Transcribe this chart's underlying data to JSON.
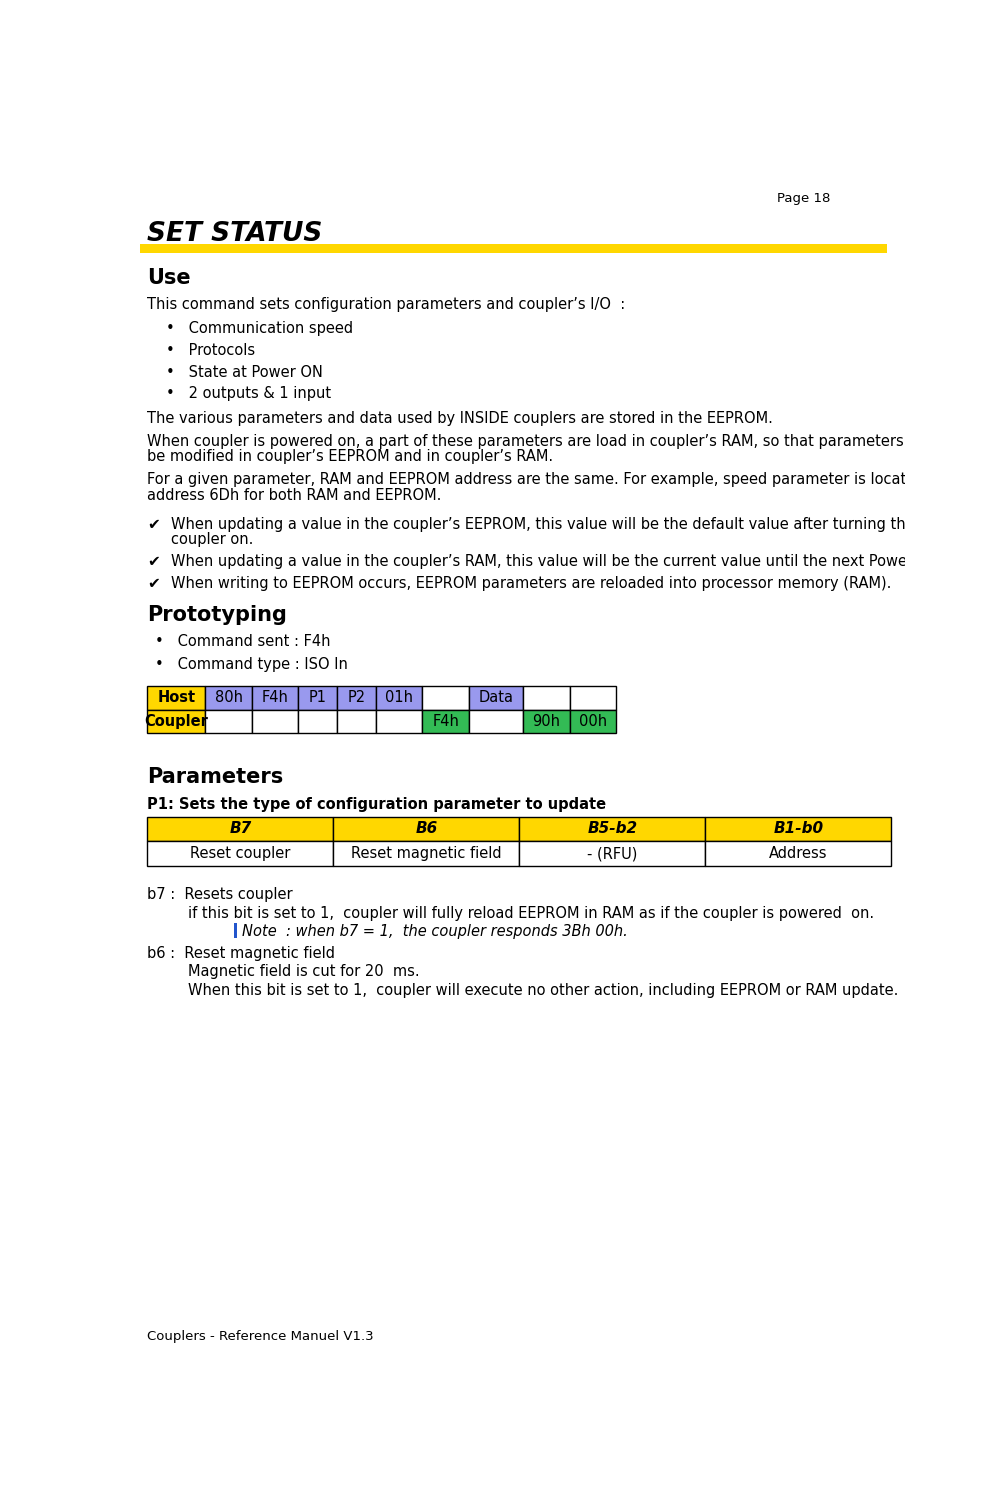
{
  "page_number": "Page 18",
  "title": "SET STATUS",
  "title_bar_color": "#FFD700",
  "section_use": "Use",
  "use_intro": "This command sets configuration parameters and coupler’s I/O  :",
  "use_bullets": [
    "Communication speed",
    "Protocols",
    "State at Power ON",
    "2 outputs & 1 input"
  ],
  "use_para1": "The various parameters and data used by INSIDE couplers are stored in the EEPROM.",
  "use_para2a": "When coupler is powered on, a part of these parameters are load in coupler’s RAM, so that parameters may",
  "use_para2b": "be modified in coupler’s EEPROM and in coupler’s RAM.",
  "use_para3a": "For a given parameter, RAM and EEPROM address are the same. For example, speed parameter is located at",
  "use_para3b": "address 6Dh for both RAM and EEPROM.",
  "checkmarks": [
    [
      "When updating a value in the coupler’s EEPROM, this value will be the default value after turning the",
      "coupler on."
    ],
    [
      "When updating a value in the coupler’s RAM, this value will be the current value until the next Power  Off."
    ],
    [
      "When writing to EEPROM occurs, EEPROM parameters are reloaded into processor memory (RAM)."
    ]
  ],
  "section_proto": "Prototyping",
  "proto_bullets": [
    "Command sent : F4h",
    "Command type : ISO In"
  ],
  "host_row": [
    "Host",
    "80h",
    "F4h",
    "P1",
    "P2",
    "01h",
    "",
    "Data",
    "",
    ""
  ],
  "coupler_row": [
    "Coupler",
    "",
    "",
    "",
    "",
    "",
    "F4h",
    "",
    "90h",
    "00h"
  ],
  "host_colors": [
    "#FFD700",
    "#9999EE",
    "#9999EE",
    "#9999EE",
    "#9999EE",
    "#9999EE",
    "#FFFFFF",
    "#9999EE",
    "#FFFFFF",
    "#FFFFFF"
  ],
  "coupler_colors": [
    "#FFD700",
    "#FFFFFF",
    "#FFFFFF",
    "#FFFFFF",
    "#FFFFFF",
    "#FFFFFF",
    "#33BB55",
    "#FFFFFF",
    "#33BB55",
    "#33BB55"
  ],
  "section_params": "Parameters",
  "p1_label": "P1: Sets the type of configuration parameter to update",
  "param_header": [
    "B7",
    "B6",
    "B5-b2",
    "B1-b0"
  ],
  "param_row": [
    "Reset coupler",
    "Reset magnetic field",
    "- (RFU)",
    "Address"
  ],
  "param_header_color": "#FFD700",
  "param_row_color": "#FFFFFF",
  "b7_line1": "b7 :  Resets coupler",
  "b7_line2": "if this bit is set to 1,  coupler will fully reload EEPROM in RAM as if the coupler is powered  on.",
  "note_line": "Note  : when b7 = 1,  the coupler responds 3Bh 00h.",
  "b6_line1": "b6 :  Reset magnetic field",
  "b6_line2": "Magnetic field is cut for 20  ms.",
  "b6_line3": "When this bit is set to 1,  coupler will execute no other action, including EEPROM or RAM update.",
  "footer": "Couplers - Reference Manuel V1.3",
  "bg_color": "#FFFFFF"
}
